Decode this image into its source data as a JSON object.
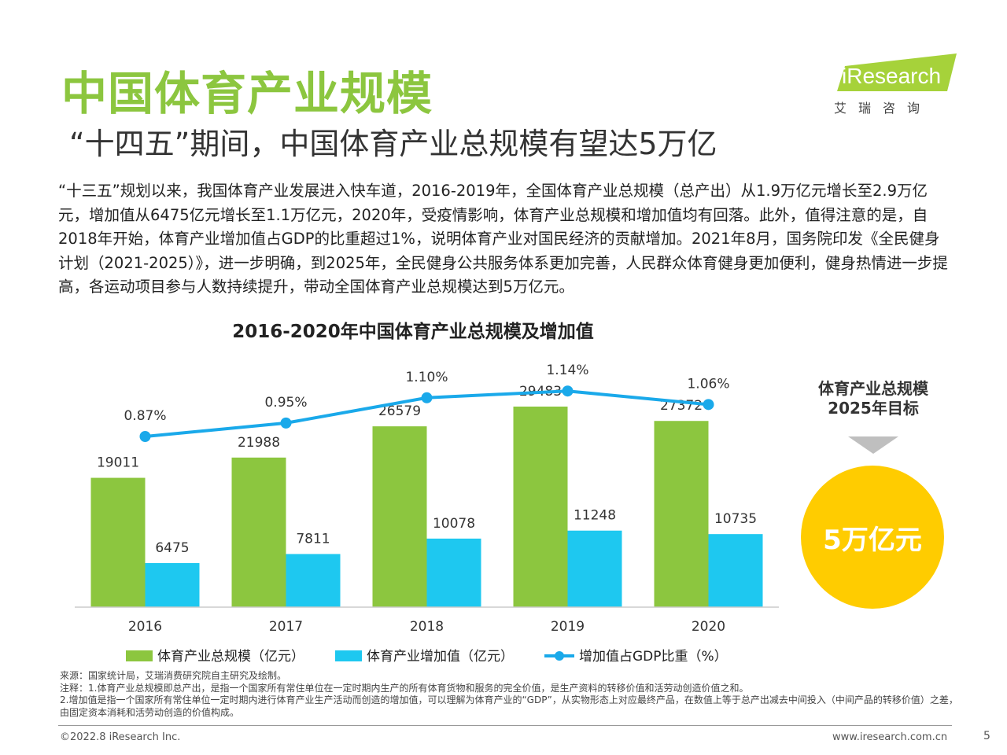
{
  "title": "中国体育产业规模",
  "subtitle": "“十四五”期间，中国体育产业总规模有望达5万亿",
  "body_text": "“十三五”规划以来，我国体育产业发展进入快车道，2016-2019年，全国体育产业总规模（总产出）从1.9万亿元增长至2.9万亿元，增加值从6475亿元增长至1.1万亿元，2020年，受疫情影响，体育产业总规模和增加值均有回落。此外，值得注意的是，自2018年开始，体育产业增加值占GDP的比重超过1%，说明体育产业对国民经济的贡献增加。2021年8月，国务院印发《全民健身计划（2021-2025）》，进一步明确，到2025年，全民健身公共服务体系更加完善，人民群众体育健身更加便利，健身热情进一步提高，各运动项目参与人数持续提升，带动全国体育产业总规模达到5万亿元。",
  "logo": {
    "brand": "iResearch",
    "cn": "艾瑞咨询"
  },
  "side_panel": {
    "title_line1": "体育产业总规模",
    "title_line2": "2025年目标",
    "target": "5万亿元"
  },
  "notes": {
    "source": "来源：国家统计局，艾瑞消费研究院自主研究及绘制。",
    "note1": "注释：1.体育产业总规模即总产出，是指一个国家所有常住单位在一定时期内生产的所有体育货物和服务的完全价值，是生产资料的转移价值和活劳动创造价值之和。",
    "note2": "2.增加值是指一个国家所有常住单位一定时期内进行体育产业生产活动而创造的增加值，可以理解为体育产业的“GDP”，从实物形态上对应最终产品，在数值上等于总产出减去中间投入（中间产品的转移价值）之差，由固定资本消耗和活劳动创造的价值构成。"
  },
  "footer": {
    "copyright": "©2022.8 iResearch Inc.",
    "website": "www.iresearch.com.cn",
    "page": "5"
  },
  "colors": {
    "green": "#8cc63f",
    "blue": "#1ec8f0",
    "line": "#1aa9ea",
    "target": "#ffcc00"
  },
  "chart_data": {
    "type": "bar",
    "title": "2016-2020年中国体育产业总规模及增加值",
    "categories": [
      "2016",
      "2017",
      "2018",
      "2019",
      "2020"
    ],
    "series": [
      {
        "name": "体育产业总规模（亿元）",
        "type": "bar",
        "values": [
          19011,
          21988,
          26579,
          29483,
          27372
        ]
      },
      {
        "name": "体育产业增加值（亿元）",
        "type": "bar",
        "values": [
          6475,
          7811,
          10078,
          11248,
          10735
        ]
      },
      {
        "name": "增加值占GDP比重（%）",
        "type": "line",
        "values": [
          0.87,
          0.95,
          1.1,
          1.14,
          1.06
        ],
        "labels": [
          "0.87%",
          "0.95%",
          "1.10%",
          "1.14%",
          "1.06%"
        ]
      }
    ],
    "legend": "bottom"
  }
}
